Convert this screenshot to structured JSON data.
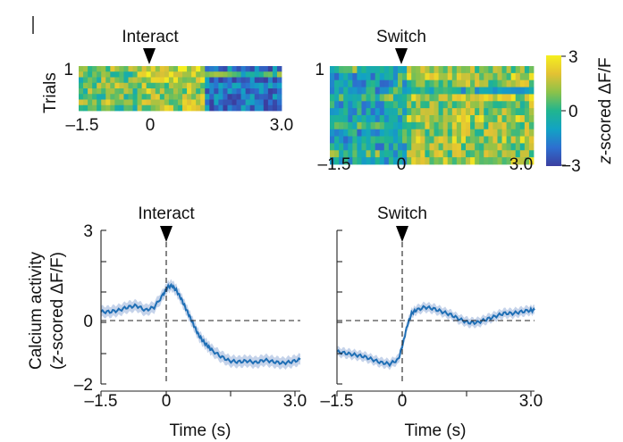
{
  "panel_mark": "l",
  "colorbar": {
    "label_prefix": "z",
    "label_suffix": "-scored ΔF/F",
    "ticks": [
      3,
      0,
      -3
    ],
    "range": [
      -3,
      3
    ],
    "colors": [
      "#3b3fa0",
      "#2d6fd0",
      "#12a3c4",
      "#21b58f",
      "#8bc24a",
      "#e3c233",
      "#f5ef1e"
    ]
  },
  "chart_data": [
    {
      "type": "heatmap",
      "title": "Interact",
      "ylabel": "Trials",
      "ytick_first": "1",
      "xlim": [
        -1.5,
        3.0
      ],
      "xtick_labels": [
        "–1.5",
        "0",
        "3.0"
      ],
      "xtick_values": [
        -1.5,
        0,
        3.0
      ],
      "event_time": 0,
      "n_trials": 8,
      "n_bins": 45,
      "pattern": "active around interaction (0–1.2 s), suppressed afterwards for most trials",
      "value_range": [
        -3,
        3
      ]
    },
    {
      "type": "heatmap",
      "title": "Switch",
      "ytick_first": "1",
      "xlim": [
        -1.5,
        3.0
      ],
      "xtick_labels": [
        "–1.5",
        "0",
        "3.0"
      ],
      "xtick_values": [
        -1.5,
        0,
        3.0
      ],
      "event_time": 0,
      "n_trials": 14,
      "n_bins": 45,
      "pattern": "low activity before switch, elevated after switch",
      "value_range": [
        -3,
        3
      ]
    },
    {
      "type": "line",
      "title": "Interact",
      "ylabel_line1": "Calcium activity",
      "ylabel_line2_italic": "z",
      "ylabel_line2_rest": "-scored ΔF/F)",
      "ylabel_line2_open": "(",
      "xlabel": "Time (s)",
      "xlim": [
        -1.5,
        3.0
      ],
      "ylim": [
        -2,
        3
      ],
      "xtick_labels": [
        "–1.5",
        "0",
        "3.0"
      ],
      "xtick_values": [
        -1.5,
        0,
        3.0
      ],
      "ytick_labels": [
        "3",
        "0",
        "–2"
      ],
      "ytick_values": [
        3,
        0,
        -2
      ],
      "hline": 0,
      "vline": 0,
      "series": [
        {
          "name": "mean",
          "color": "#1f6fb5",
          "band_color": "#c5d3ea",
          "x": [
            -1.5,
            -1.3,
            -1.1,
            -0.9,
            -0.7,
            -0.5,
            -0.3,
            -0.1,
            0.0,
            0.1,
            0.2,
            0.3,
            0.4,
            0.5,
            0.6,
            0.7,
            0.8,
            0.9,
            1.0,
            1.2,
            1.4,
            1.6,
            1.8,
            2.0,
            2.2,
            2.4,
            2.6,
            2.8,
            3.0
          ],
          "y": [
            0.35,
            0.35,
            0.4,
            0.5,
            0.55,
            0.4,
            0.5,
            0.9,
            1.15,
            1.2,
            1.05,
            0.8,
            0.5,
            0.2,
            -0.1,
            -0.4,
            -0.6,
            -0.75,
            -0.9,
            -1.1,
            -1.25,
            -1.28,
            -1.25,
            -1.3,
            -1.22,
            -1.28,
            -1.32,
            -1.28,
            -1.2
          ],
          "sem": 0.18
        }
      ]
    },
    {
      "type": "line",
      "title": "Switch",
      "xlabel": "Time (s)",
      "xlim": [
        -1.5,
        3.0
      ],
      "ylim": [
        -2,
        3
      ],
      "xtick_labels": [
        "–1.5",
        "0",
        "3.0"
      ],
      "xtick_values": [
        -1.5,
        0,
        3.0
      ],
      "hline": 0,
      "vline": 0,
      "series": [
        {
          "name": "mean",
          "color": "#1f6fb5",
          "band_color": "#c5d3ea",
          "x": [
            -1.5,
            -1.3,
            -1.1,
            -0.9,
            -0.7,
            -0.5,
            -0.3,
            -0.1,
            0.0,
            0.1,
            0.2,
            0.3,
            0.5,
            0.7,
            0.9,
            1.1,
            1.3,
            1.5,
            1.7,
            1.9,
            2.1,
            2.3,
            2.5,
            2.7,
            2.9,
            3.0
          ],
          "y": [
            -0.95,
            -1.0,
            -1.05,
            -1.1,
            -1.2,
            -1.3,
            -1.35,
            -1.2,
            -0.7,
            -0.1,
            0.3,
            0.4,
            0.5,
            0.45,
            0.35,
            0.25,
            0.1,
            0.0,
            0.0,
            0.1,
            0.2,
            0.3,
            0.3,
            0.35,
            0.4,
            0.4
          ],
          "sem": 0.15
        }
      ]
    }
  ]
}
